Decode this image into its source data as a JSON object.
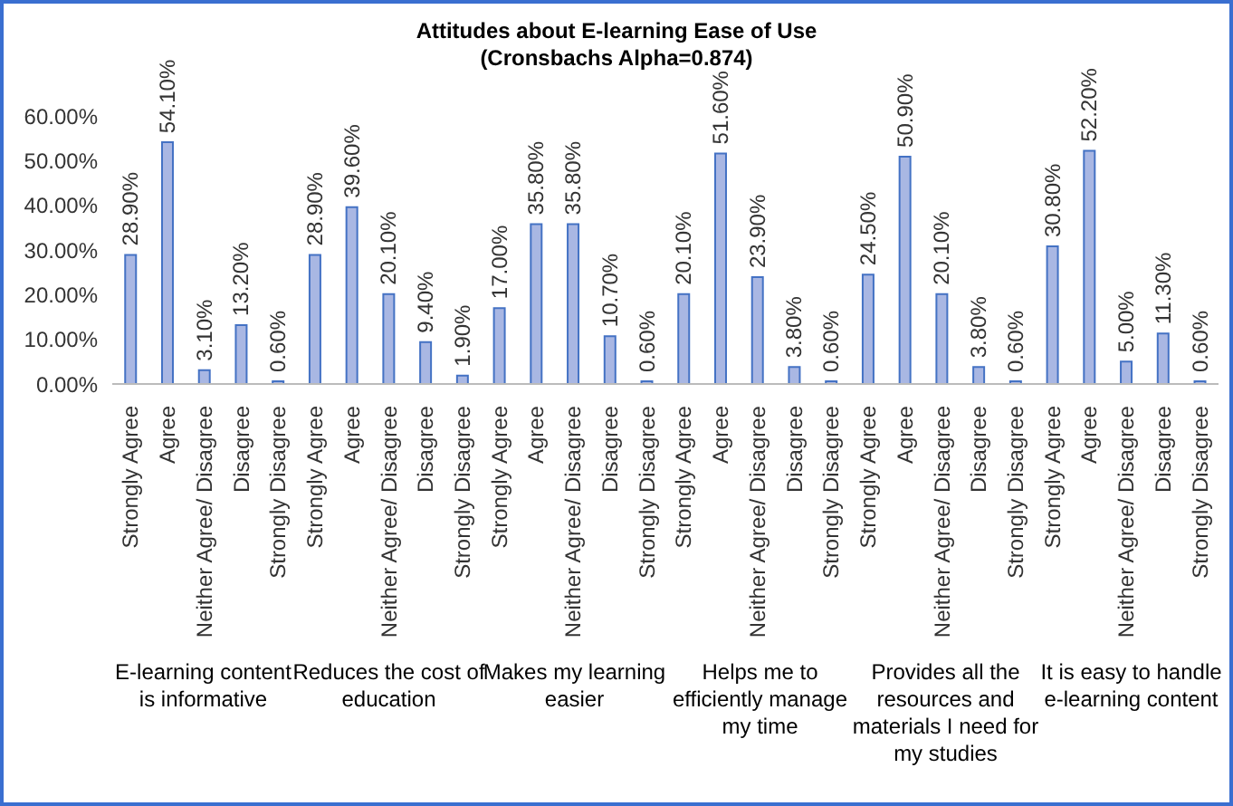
{
  "chart_data": {
    "type": "bar",
    "title": "Attitudes about E-learning Ease of Use",
    "subtitle": "(Cronsbachs Alpha=0.874)",
    "categories": [
      "Strongly Agree",
      "Agree",
      "Neither Agree/ Disagree",
      "Disagree",
      "Strongly Disagree",
      "Strongly Agree",
      "Agree",
      "Neither Agree/ Disagree",
      "Disagree",
      "Strongly Disagree",
      "Strongly Agree",
      "Agree",
      "Neither Agree/ Disagree",
      "Disagree",
      "Strongly Disagree",
      "Strongly Agree",
      "Agree",
      "Neither Agree/ Disagree",
      "Disagree",
      "Strongly Disagree",
      "Strongly Agree",
      "Agree",
      "Neither Agree/ Disagree",
      "Disagree",
      "Strongly Disagree",
      "Strongly Agree",
      "Agree",
      "Neither Agree/ Disagree",
      "Disagree",
      "Strongly Disagree"
    ],
    "values": [
      28.9,
      54.1,
      3.1,
      13.2,
      0.6,
      28.9,
      39.6,
      20.1,
      9.4,
      1.9,
      17.0,
      35.8,
      35.8,
      10.7,
      0.6,
      20.1,
      51.6,
      23.9,
      3.8,
      0.6,
      24.5,
      50.9,
      20.1,
      3.8,
      0.6,
      30.8,
      52.2,
      5.0,
      11.3,
      0.6
    ],
    "value_labels": [
      "28.90%",
      "54.10%",
      "3.10%",
      "13.20%",
      "0.60%",
      "28.90%",
      "39.60%",
      "20.10%",
      "9.40%",
      "1.90%",
      "17.00%",
      "35.80%",
      "35.80%",
      "10.70%",
      "0.60%",
      "20.10%",
      "51.60%",
      "23.90%",
      "3.80%",
      "0.60%",
      "24.50%",
      "50.90%",
      "20.10%",
      "3.80%",
      "0.60%",
      "30.80%",
      "52.20%",
      "5.00%",
      "11.30%",
      "0.60%"
    ],
    "color": "#a9b7e3",
    "ylim": [
      0,
      60
    ],
    "yticks": [
      {
        "value": 0,
        "label": "0.00%"
      },
      {
        "value": 10,
        "label": "10.00%"
      },
      {
        "value": 20,
        "label": "20.00%"
      },
      {
        "value": 30,
        "label": "30.00%"
      },
      {
        "value": 40,
        "label": "40.00%"
      },
      {
        "value": 50,
        "label": "50.00%"
      },
      {
        "value": 60,
        "label": "60.00%"
      }
    ],
    "annotations": [
      "E-learning content is informative",
      "Reduces the cost of education",
      "Makes my learning easier",
      "Helps me to efficiently manage my time",
      "Provides all the resources and materials I need for my studies",
      "It is easy to handle e-learning content"
    ]
  }
}
